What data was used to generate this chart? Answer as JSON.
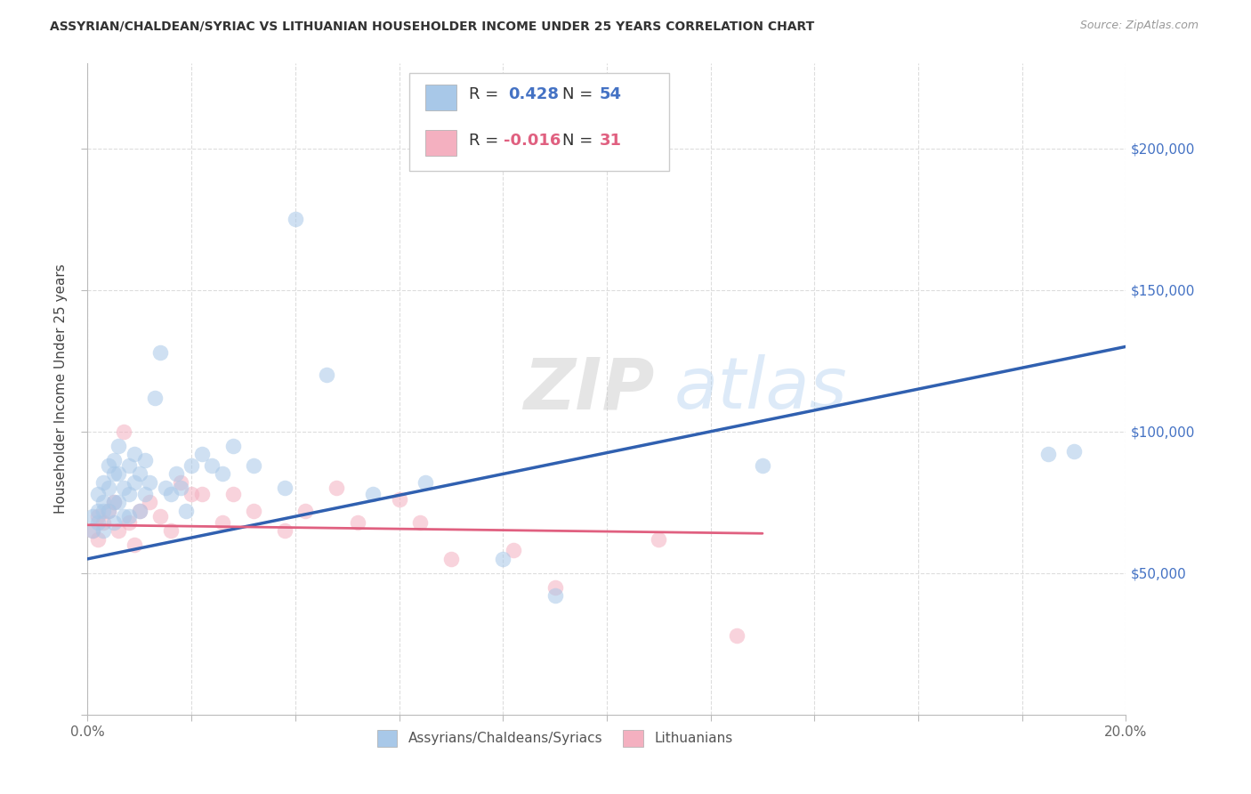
{
  "title": "ASSYRIAN/CHALDEAN/SYRIAC VS LITHUANIAN HOUSEHOLDER INCOME UNDER 25 YEARS CORRELATION CHART",
  "source": "Source: ZipAtlas.com",
  "ylabel": "Householder Income Under 25 years",
  "xlim": [
    0,
    0.2
  ],
  "ylim": [
    0,
    230000
  ],
  "background_color": "#ffffff",
  "grid_color": "#dddddd",
  "watermark_text": "ZIPatlas",
  "blue_color": "#a8c8e8",
  "pink_color": "#f4b0c0",
  "blue_line_color": "#3060b0",
  "pink_line_color": "#e06080",
  "legend_R_blue": "0.428",
  "legend_N_blue": "54",
  "legend_R_pink": "-0.016",
  "legend_N_pink": "31",
  "legend_label_blue": "Assyrians/Chaldeans/Syriacs",
  "legend_label_pink": "Lithuanians",
  "blue_scatter_x": [
    0.001,
    0.001,
    0.002,
    0.002,
    0.002,
    0.003,
    0.003,
    0.003,
    0.003,
    0.004,
    0.004,
    0.004,
    0.005,
    0.005,
    0.005,
    0.005,
    0.006,
    0.006,
    0.006,
    0.007,
    0.007,
    0.008,
    0.008,
    0.008,
    0.009,
    0.009,
    0.01,
    0.01,
    0.011,
    0.011,
    0.012,
    0.013,
    0.014,
    0.015,
    0.016,
    0.017,
    0.018,
    0.019,
    0.02,
    0.022,
    0.024,
    0.026,
    0.028,
    0.032,
    0.038,
    0.04,
    0.046,
    0.055,
    0.065,
    0.08,
    0.09,
    0.13,
    0.185,
    0.19
  ],
  "blue_scatter_y": [
    70000,
    65000,
    78000,
    72000,
    68000,
    82000,
    75000,
    72000,
    65000,
    88000,
    80000,
    72000,
    90000,
    85000,
    75000,
    68000,
    95000,
    85000,
    75000,
    80000,
    70000,
    88000,
    78000,
    70000,
    92000,
    82000,
    85000,
    72000,
    90000,
    78000,
    82000,
    112000,
    128000,
    80000,
    78000,
    85000,
    80000,
    72000,
    88000,
    92000,
    88000,
    85000,
    95000,
    88000,
    80000,
    175000,
    120000,
    78000,
    82000,
    55000,
    42000,
    88000,
    92000,
    93000
  ],
  "pink_scatter_x": [
    0.001,
    0.002,
    0.002,
    0.003,
    0.004,
    0.005,
    0.006,
    0.007,
    0.008,
    0.009,
    0.01,
    0.012,
    0.014,
    0.016,
    0.018,
    0.02,
    0.022,
    0.026,
    0.028,
    0.032,
    0.038,
    0.042,
    0.048,
    0.052,
    0.06,
    0.064,
    0.07,
    0.082,
    0.09,
    0.11,
    0.125
  ],
  "pink_scatter_y": [
    65000,
    70000,
    62000,
    68000,
    72000,
    75000,
    65000,
    100000,
    68000,
    60000,
    72000,
    75000,
    70000,
    65000,
    82000,
    78000,
    78000,
    68000,
    78000,
    72000,
    65000,
    72000,
    80000,
    68000,
    76000,
    68000,
    55000,
    58000,
    45000,
    62000,
    28000
  ],
  "blue_line_x": [
    0.0,
    0.2
  ],
  "blue_line_y": [
    55000,
    130000
  ],
  "pink_line_x": [
    0.0,
    0.13
  ],
  "pink_line_y": [
    67000,
    64000
  ]
}
